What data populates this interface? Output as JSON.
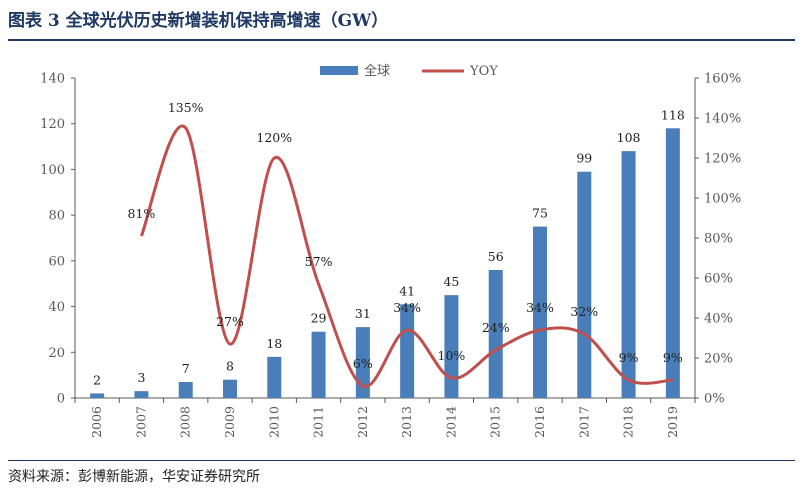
{
  "figure": {
    "title": "图表 3 全球光伏历史新增装机保持高增速（GW）",
    "source": "资料来源：彭博新能源，华安证券研究所"
  },
  "colors": {
    "bar": "#4a7ebb",
    "line": "#c0504d",
    "title": "#1f3864",
    "axis": "#595959"
  },
  "chart_data": {
    "type": "bar",
    "categories": [
      "2006",
      "2007",
      "2008",
      "2009",
      "2010",
      "2011",
      "2012",
      "2013",
      "2014",
      "2015",
      "2016",
      "2017",
      "2018",
      "2019"
    ],
    "series": [
      {
        "name": "全球",
        "type": "bar",
        "axis": "left",
        "values": [
          2,
          3,
          7,
          8,
          18,
          29,
          31,
          41,
          45,
          56,
          75,
          99,
          108,
          118
        ],
        "labels": [
          "2",
          "3",
          "7",
          "8",
          "18",
          "29",
          "31",
          "41",
          "45",
          "56",
          "75",
          "99",
          "108",
          "118"
        ]
      },
      {
        "name": "YOY",
        "type": "line",
        "axis": "right",
        "values": [
          null,
          81,
          135,
          27,
          120,
          57,
          6,
          34,
          10,
          24,
          34,
          32,
          9,
          9
        ],
        "labels": [
          "",
          "81%",
          "135%",
          "27%",
          "120%",
          "57%",
          "6%",
          "34%",
          "10%",
          "24%",
          "34%",
          "32%",
          "9%",
          "9%"
        ]
      }
    ],
    "y_left": {
      "min": 0,
      "max": 140,
      "ticks": [
        "0",
        "20",
        "40",
        "60",
        "80",
        "100",
        "120",
        "140"
      ]
    },
    "y_right": {
      "min": 0,
      "max": 160,
      "ticks": [
        "0%",
        "20%",
        "40%",
        "60%",
        "80%",
        "100%",
        "120%",
        "140%",
        "160%"
      ]
    },
    "legend": "top-center",
    "grid": false
  }
}
